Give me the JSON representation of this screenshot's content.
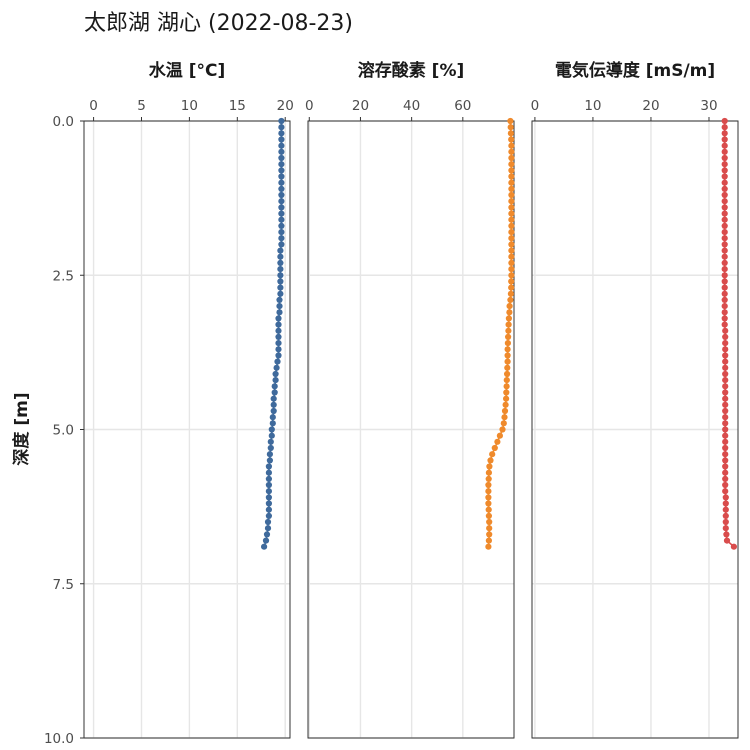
{
  "chart": {
    "title": "太郎湖 湖心 (2022-08-23)",
    "ylabel": "深度 [m]"
  },
  "chart_data": {
    "type": "scatter",
    "title": "太郎湖 湖心 (2022-08-23)",
    "ylabel": "深度 [m]",
    "y_reversed": true,
    "ylim": [
      0,
      10
    ],
    "y_ticks": [
      0.0,
      2.5,
      5.0,
      7.5,
      10.0
    ],
    "y_tick_labels": [
      "0.0",
      "2.5",
      "5.0",
      "7.5",
      "10.0"
    ],
    "grid": true,
    "legend": "none",
    "depth": [
      0.0,
      0.1,
      0.2,
      0.3,
      0.4,
      0.5,
      0.6,
      0.7,
      0.8,
      0.9,
      1.0,
      1.1,
      1.2,
      1.3,
      1.4,
      1.5,
      1.6,
      1.7,
      1.8,
      1.9,
      2.0,
      2.1,
      2.2,
      2.3,
      2.4,
      2.5,
      2.6,
      2.7,
      2.8,
      2.9,
      3.0,
      3.1,
      3.2,
      3.3,
      3.4,
      3.5,
      3.6,
      3.7,
      3.8,
      3.9,
      4.0,
      4.1,
      4.2,
      4.3,
      4.4,
      4.5,
      4.6,
      4.7,
      4.8,
      4.9,
      5.0,
      5.1,
      5.2,
      5.3,
      5.4,
      5.5,
      5.6,
      5.7,
      5.8,
      5.9,
      6.0,
      6.1,
      6.2,
      6.3,
      6.4,
      6.5,
      6.6,
      6.7,
      6.8,
      6.9
    ],
    "panels": [
      {
        "name": "水温 [°C]",
        "color": "#3f6a9c",
        "xlim": [
          -1,
          20.5
        ],
        "x_ticks": [
          0,
          5,
          10,
          15,
          20
        ],
        "values": [
          19.6,
          19.6,
          19.6,
          19.6,
          19.6,
          19.6,
          19.6,
          19.6,
          19.6,
          19.6,
          19.6,
          19.6,
          19.6,
          19.6,
          19.6,
          19.6,
          19.6,
          19.6,
          19.6,
          19.6,
          19.6,
          19.5,
          19.5,
          19.5,
          19.5,
          19.5,
          19.5,
          19.5,
          19.5,
          19.4,
          19.4,
          19.4,
          19.3,
          19.3,
          19.3,
          19.3,
          19.3,
          19.3,
          19.3,
          19.2,
          19.1,
          19.0,
          19.0,
          18.9,
          18.9,
          18.8,
          18.8,
          18.8,
          18.7,
          18.7,
          18.6,
          18.6,
          18.5,
          18.5,
          18.4,
          18.4,
          18.3,
          18.3,
          18.3,
          18.3,
          18.3,
          18.3,
          18.3,
          18.3,
          18.3,
          18.2,
          18.2,
          18.1,
          18.0,
          17.8
        ]
      },
      {
        "name": "溶存酸素 [%]",
        "color": "#ef8a2c",
        "xlim": [
          -0.5,
          80
        ],
        "x_ticks": [
          0,
          20,
          40,
          60
        ],
        "values": [
          78.6,
          78.7,
          78.8,
          78.9,
          79.0,
          79.0,
          79.0,
          79.0,
          79.0,
          79.0,
          79.0,
          79.0,
          79.0,
          79.0,
          79.0,
          79.0,
          79.0,
          79.0,
          79.0,
          79.0,
          79.0,
          79.0,
          79.0,
          79.0,
          79.0,
          79.0,
          78.9,
          78.9,
          78.8,
          78.6,
          78.3,
          78.2,
          78.0,
          77.9,
          77.8,
          77.7,
          77.6,
          77.5,
          77.5,
          77.5,
          77.4,
          77.3,
          77.2,
          77.1,
          77.0,
          76.9,
          76.7,
          76.5,
          76.3,
          76.0,
          75.5,
          74.5,
          73.5,
          72.5,
          71.5,
          70.8,
          70.4,
          70.2,
          70.1,
          70.0,
          70.0,
          70.0,
          70.0,
          70.1,
          70.2,
          70.3,
          70.3,
          70.3,
          70.2,
          70.0
        ]
      },
      {
        "name": "電気伝導度 [mS/m]",
        "color": "#d94c4c",
        "xlim": [
          -0.5,
          35
        ],
        "x_ticks": [
          0,
          10,
          20,
          30
        ],
        "values": [
          32.7,
          32.7,
          32.7,
          32.7,
          32.7,
          32.7,
          32.7,
          32.7,
          32.7,
          32.7,
          32.7,
          32.7,
          32.7,
          32.7,
          32.7,
          32.7,
          32.7,
          32.7,
          32.7,
          32.7,
          32.7,
          32.7,
          32.7,
          32.7,
          32.7,
          32.7,
          32.7,
          32.7,
          32.7,
          32.7,
          32.7,
          32.7,
          32.7,
          32.7,
          32.8,
          32.8,
          32.8,
          32.8,
          32.8,
          32.8,
          32.8,
          32.8,
          32.8,
          32.8,
          32.8,
          32.8,
          32.8,
          32.8,
          32.8,
          32.8,
          32.8,
          32.8,
          32.8,
          32.8,
          32.8,
          32.8,
          32.8,
          32.8,
          32.8,
          32.8,
          32.8,
          32.9,
          32.9,
          32.9,
          32.9,
          32.9,
          32.9,
          33.0,
          33.1,
          34.3
        ]
      }
    ]
  }
}
